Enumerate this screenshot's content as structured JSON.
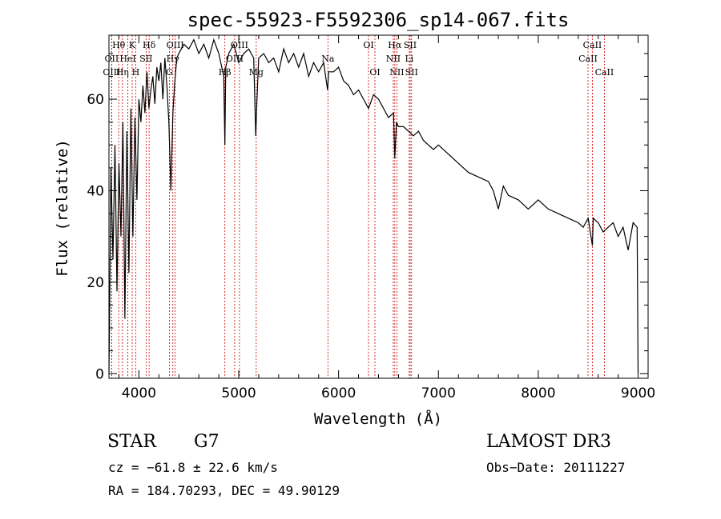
{
  "chart_data": {
    "type": "line",
    "title": "spec-55923-F5592306_sp14-067.fits",
    "xlabel": "Wavelength (Å)",
    "ylabel": "Flux (relative)",
    "xlim": [
      3700,
      9100
    ],
    "ylim": [
      -1,
      74
    ],
    "xticks": [
      4000,
      5000,
      6000,
      7000,
      8000,
      9000
    ],
    "yticks": [
      0,
      20,
      40,
      60
    ],
    "series": [
      {
        "name": "flux",
        "x": [
          3700,
          3710,
          3720,
          3740,
          3760,
          3780,
          3800,
          3820,
          3840,
          3860,
          3880,
          3900,
          3920,
          3940,
          3960,
          3980,
          4000,
          4020,
          4040,
          4060,
          4080,
          4100,
          4120,
          4140,
          4160,
          4180,
          4200,
          4220,
          4240,
          4260,
          4280,
          4300,
          4320,
          4340,
          4360,
          4380,
          4400,
          4450,
          4500,
          4550,
          4600,
          4650,
          4700,
          4750,
          4800,
          4850,
          4861,
          4870,
          4900,
          4950,
          5000,
          5050,
          5100,
          5150,
          5170,
          5183,
          5200,
          5250,
          5300,
          5350,
          5400,
          5450,
          5500,
          5550,
          5600,
          5650,
          5700,
          5750,
          5800,
          5850,
          5890,
          5900,
          5950,
          6000,
          6050,
          6100,
          6150,
          6200,
          6250,
          6300,
          6350,
          6400,
          6450,
          6500,
          6550,
          6563,
          6580,
          6600,
          6650,
          6700,
          6750,
          6800,
          6850,
          6900,
          6950,
          7000,
          7100,
          7200,
          7300,
          7400,
          7500,
          7550,
          7600,
          7650,
          7700,
          7800,
          7900,
          8000,
          8100,
          8200,
          8300,
          8400,
          8450,
          8500,
          8542,
          8550,
          8600,
          8650,
          8700,
          8750,
          8800,
          8850,
          8900,
          8950,
          8990,
          9000
        ],
        "values": [
          0,
          20,
          45,
          25,
          50,
          18,
          46,
          30,
          55,
          12,
          53,
          22,
          58,
          30,
          56,
          38,
          60,
          55,
          63,
          57,
          66,
          58,
          62,
          65,
          59,
          67,
          64,
          68,
          60,
          69,
          63,
          55,
          40,
          57,
          64,
          69,
          70,
          72,
          71,
          73,
          70,
          72,
          69,
          73,
          70,
          65,
          50,
          67,
          70,
          72,
          68,
          70,
          71,
          69,
          52,
          60,
          69,
          70,
          68,
          69,
          66,
          71,
          68,
          70,
          67,
          70,
          65,
          68,
          66,
          68,
          62,
          66,
          66,
          67,
          64,
          63,
          61,
          62,
          60,
          58,
          61,
          60,
          58,
          56,
          57,
          47,
          55,
          54,
          54,
          53,
          52,
          53,
          51,
          50,
          49,
          50,
          48,
          46,
          44,
          43,
          42,
          40,
          36,
          41,
          39,
          38,
          36,
          38,
          36,
          35,
          34,
          33,
          32,
          34,
          28,
          34,
          33,
          31,
          32,
          33,
          30,
          32,
          27,
          33,
          32,
          0
        ]
      }
    ],
    "lines": [
      {
        "label": "Hθ",
        "x": 3798,
        "row": 0
      },
      {
        "label": "K",
        "x": 3933,
        "row": 0
      },
      {
        "label": "Hδ",
        "x": 4102,
        "row": 0
      },
      {
        "label": "OII",
        "x": 3727,
        "row": 1
      },
      {
        "label": "HeI",
        "x": 3889,
        "row": 1
      },
      {
        "label": "SII",
        "x": 4072,
        "row": 1
      },
      {
        "label": "OIII",
        "x": 3727,
        "row": 2
      },
      {
        "label": "Hη",
        "x": 3835,
        "row": 2
      },
      {
        "label": "H",
        "x": 3968,
        "row": 2
      },
      {
        "label": "OIII",
        "x": 4363,
        "row": 0
      },
      {
        "label": "Hγ",
        "x": 4340,
        "row": 1
      },
      {
        "label": "G",
        "x": 4305,
        "row": 2
      },
      {
        "label": "OIII",
        "x": 5007,
        "row": 0
      },
      {
        "label": "OIII",
        "x": 4959,
        "row": 1
      },
      {
        "label": "Hβ",
        "x": 4861,
        "row": 2
      },
      {
        "label": "Mg",
        "x": 5175,
        "row": 2
      },
      {
        "label": "Na",
        "x": 5893,
        "row": 1
      },
      {
        "label": "OI",
        "x": 6300,
        "row": 0
      },
      {
        "label": "OI",
        "x": 6364,
        "row": 2
      },
      {
        "label": "Hα",
        "x": 6563,
        "row": 0
      },
      {
        "label": "NII",
        "x": 6548,
        "row": 1
      },
      {
        "label": "NII",
        "x": 6584,
        "row": 2
      },
      {
        "label": "SII",
        "x": 6717,
        "row": 0
      },
      {
        "label": "Li",
        "x": 6708,
        "row": 1
      },
      {
        "label": "SII",
        "x": 6731,
        "row": 2
      },
      {
        "label": "CaII",
        "x": 8542,
        "row": 0
      },
      {
        "label": "CaII",
        "x": 8498,
        "row": 1
      },
      {
        "label": "CaII",
        "x": 8662,
        "row": 2
      }
    ]
  },
  "info": {
    "object_class": "STAR",
    "subclass": "G7",
    "survey": "LAMOST DR3",
    "cz": "cz = −61.8 ± 22.6 km/s",
    "obs_date": "Obs−Date: 20111227",
    "radec": "RA = 184.70293, DEC =  49.90129"
  }
}
